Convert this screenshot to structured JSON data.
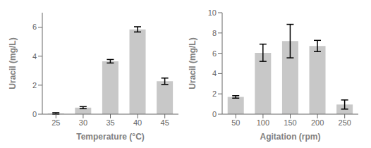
{
  "chart_data": [
    {
      "type": "bar",
      "categories": [
        "25",
        "30",
        "35",
        "40",
        "45"
      ],
      "values": [
        0.05,
        0.45,
        3.65,
        5.85,
        2.27
      ],
      "errors": [
        0.05,
        0.07,
        0.12,
        0.18,
        0.22
      ],
      "xlabel": "Temperature (°C)",
      "ylabel": "Uracil (mg/L)",
      "ylim": [
        0,
        7
      ],
      "yticks": [
        0,
        2,
        4,
        6
      ],
      "color": "#c8c8c8",
      "grid": false
    },
    {
      "type": "bar",
      "categories": [
        "50",
        "100",
        "150",
        "200",
        "250"
      ],
      "values": [
        1.7,
        6.05,
        7.2,
        6.72,
        0.95
      ],
      "errors": [
        0.12,
        0.85,
        1.65,
        0.55,
        0.45
      ],
      "xlabel": "Agitation (rpm)",
      "ylabel": "Uracil (mg/L)",
      "ylim": [
        0,
        10
      ],
      "yticks": [
        0,
        2,
        4,
        6,
        8,
        10
      ],
      "color": "#c8c8c8",
      "grid": false
    }
  ]
}
